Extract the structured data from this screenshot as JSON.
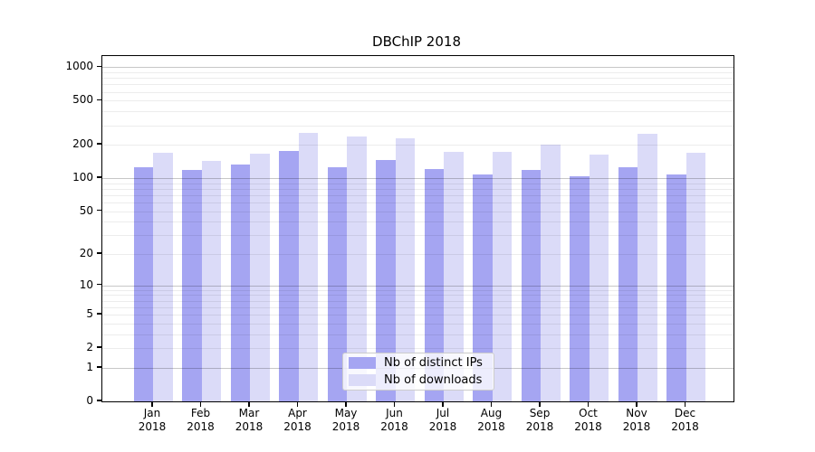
{
  "page_title": "DBChIP 2018",
  "chart_data": {
    "type": "bar",
    "title": "DBChIP 2018",
    "categories": [
      "Jan",
      "Feb",
      "Mar",
      "Apr",
      "May",
      "Jun",
      "Jul",
      "Aug",
      "Sep",
      "Oct",
      "Nov",
      "Dec"
    ],
    "year": "2018",
    "series": [
      {
        "name": "Nb of distinct IPs",
        "color": "#a5a5f2",
        "values": [
          125,
          118,
          133,
          176,
          126,
          147,
          121,
          107,
          119,
          104,
          125,
          107
        ]
      },
      {
        "name": "Nb of downloads",
        "color": "#dbdbf8",
        "values": [
          170,
          142,
          168,
          258,
          238,
          228,
          173,
          173,
          200,
          163,
          250,
          169
        ]
      }
    ],
    "y_axis": {
      "scale": "log10(value+1)",
      "tick_labels": [
        0,
        1,
        2,
        5,
        10,
        20,
        50,
        100,
        200,
        500,
        1000
      ],
      "major_grid": [
        1,
        10,
        100,
        1000
      ],
      "range": [
        0,
        1260
      ]
    },
    "x_axis": {
      "tick_label_line1": [
        "Jan",
        "Feb",
        "Mar",
        "Apr",
        "May",
        "Jun",
        "Jul",
        "Aug",
        "Sep",
        "Oct",
        "Nov",
        "Dec"
      ],
      "tick_label_line2": "2018"
    },
    "legend": {
      "position": "inside-bottom-center",
      "entries": [
        "Nb of distinct IPs",
        "Nb of downloads"
      ]
    },
    "grid": "both"
  }
}
